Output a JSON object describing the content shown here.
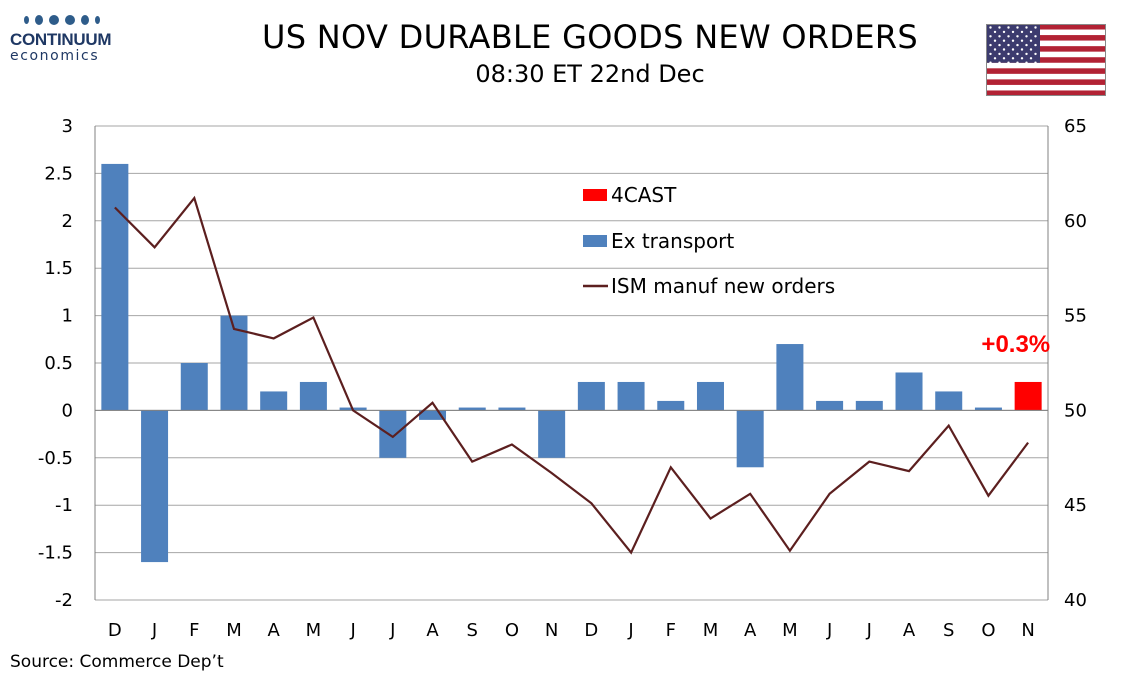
{
  "header": {
    "logo_name": "CONTINUUM",
    "logo_sub": "economics",
    "title": "US NOV DURABLE GOODS NEW ORDERS",
    "subtitle": "08:30 ET 22nd Dec"
  },
  "footer": {
    "source": "Source: Commerce Dep’t"
  },
  "colors": {
    "bar": "#4f81bd",
    "forecast_bar": "#ff0000",
    "line": "#5c1f1f",
    "grid": "#a6a6a6",
    "logo": "#1f3864"
  },
  "icons": {
    "flag": "us-flag-icon",
    "logo": "continuum-logo-icon"
  },
  "chart_data": {
    "type": "bar",
    "categories": [
      "D",
      "J",
      "F",
      "M",
      "A",
      "M",
      "J",
      "J",
      "A",
      "S",
      "O",
      "N",
      "D",
      "J",
      "F",
      "M",
      "A",
      "M",
      "J",
      "J",
      "A",
      "S",
      "O",
      "N"
    ],
    "y_left": {
      "ticks": [
        "3",
        "2.5",
        "2",
        "1.5",
        "1",
        "0.5",
        "0",
        "-0.5",
        "-1",
        "-1.5",
        "-2"
      ],
      "ylim": [
        -2,
        3
      ]
    },
    "y_right": {
      "ticks": [
        "65",
        "60",
        "55",
        "50",
        "45",
        "40"
      ],
      "ylim": [
        40,
        65
      ]
    },
    "grid": true,
    "legend_position": "upper-right",
    "series": [
      {
        "name": "Ex transport",
        "type": "bar",
        "axis": "left",
        "values": [
          2.6,
          -1.6,
          0.5,
          1.0,
          0.2,
          0.3,
          0.03,
          -0.5,
          -0.1,
          0.03,
          0.03,
          -0.5,
          0.3,
          0.3,
          0.1,
          0.3,
          -0.6,
          0.7,
          0.1,
          0.1,
          0.4,
          0.2,
          0.03,
          null
        ]
      },
      {
        "name": "4CAST",
        "type": "bar",
        "axis": "left",
        "values": [
          null,
          null,
          null,
          null,
          null,
          null,
          null,
          null,
          null,
          null,
          null,
          null,
          null,
          null,
          null,
          null,
          null,
          null,
          null,
          null,
          null,
          null,
          null,
          0.3
        ]
      },
      {
        "name": "ISM manuf new orders",
        "type": "line",
        "axis": "right",
        "values": [
          60.7,
          58.6,
          61.2,
          54.3,
          53.8,
          54.9,
          50.0,
          48.6,
          50.4,
          47.3,
          48.2,
          46.7,
          45.1,
          42.5,
          47.0,
          44.3,
          45.6,
          42.6,
          45.6,
          47.3,
          46.8,
          49.2,
          45.5,
          48.3
        ]
      }
    ],
    "annotations": [
      {
        "text": "+0.3%",
        "category_index": 23
      }
    ]
  }
}
